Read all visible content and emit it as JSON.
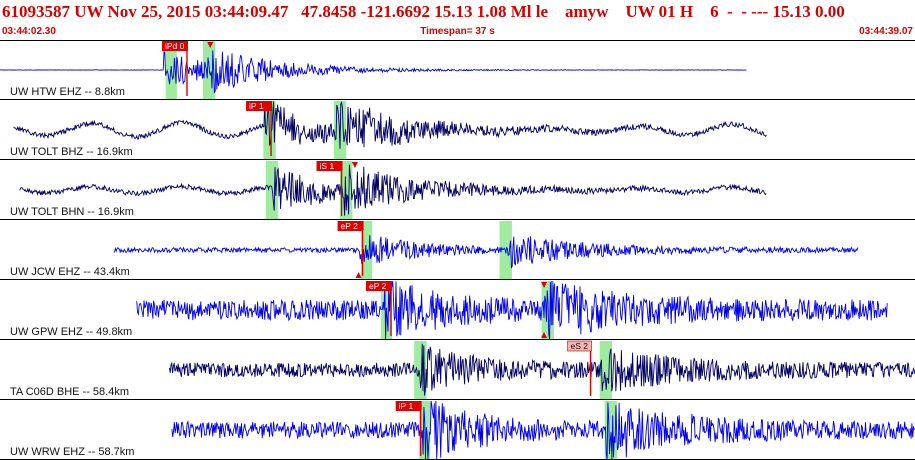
{
  "header": {
    "title": "61093587 UW Nov 25, 2015 03:44:09.47   47.8458 -121.6692 15.13 1.08 Ml le    amyw    UW 01 H    6  -  - --- 15.13 0.00",
    "start_time": "03:44:02.30",
    "timespan": "Timespan=  37 s",
    "end_time": "03:44:39.07"
  },
  "colors": {
    "header_text": "#d40000",
    "blue_trace": "#0000ee",
    "dark_trace": "#000066",
    "pick_box": "#e00000",
    "pick_box_emergent": "#f4b4b4",
    "window_highlight": "#8ee88e",
    "separator": "#000000"
  },
  "traces": [
    {
      "label": "UW HTW EHZ -- 8.8km",
      "color": "blue",
      "picks": [
        {
          "text": "iPd 0",
          "style": "solid"
        }
      ],
      "flags": [
        {
          "dir": "down"
        }
      ],
      "windows": [
        {
          "t": 6.7,
          "w": 0.45
        },
        {
          "t": 8.2,
          "w": 0.5
        }
      ],
      "pick_t": 6.55,
      "pick2_t": 8.5,
      "onset_t": 6.6,
      "s_t": 8.4,
      "start_t": 0.0,
      "end_t": 30.2,
      "amp": 0.32,
      "noise": 0.003,
      "bg": 0.0,
      "seed": 11
    },
    {
      "label": "UW TOLT BHZ -- 16.9km",
      "color": "dark",
      "picks": [
        {
          "text": "iP 1",
          "style": "solid"
        }
      ],
      "flags": [],
      "windows": [
        {
          "t": 10.65,
          "w": 0.5
        },
        {
          "t": 13.5,
          "w": 0.5
        }
      ],
      "pick_t": 9.95,
      "onset_t": 10.7,
      "s_t": 13.6,
      "start_t": 0.55,
      "end_t": 31.0,
      "amp": 0.4,
      "noise": 0.04,
      "bg": 0.12,
      "seed": 23
    },
    {
      "label": "UW TOLT BHN -- 16.9km",
      "color": "dark",
      "picks": [
        {
          "text": "iS 1",
          "style": "solid"
        }
      ],
      "flags": [
        {
          "dir": "down"
        }
      ],
      "windows": [
        {
          "t": 10.75,
          "w": 0.5
        },
        {
          "t": 13.75,
          "w": 0.5
        }
      ],
      "pick_t": 12.8,
      "pick2_t": 14.35,
      "onset_t": 11.0,
      "s_t": 13.8,
      "start_t": 0.8,
      "end_t": 31.0,
      "amp": 0.38,
      "noise": 0.04,
      "bg": 0.06,
      "seed": 37
    },
    {
      "label": "UW JCW EHZ -- 43.4km",
      "color": "blue",
      "picks": [
        {
          "text": "eP 2",
          "style": "solid"
        }
      ],
      "flags": [
        {
          "dir": "up"
        }
      ],
      "windows": [
        {
          "t": 14.6,
          "w": 0.45
        },
        {
          "t": 20.2,
          "w": 0.5
        }
      ],
      "pick_t": 13.65,
      "pick2_t": 14.5,
      "onset_t": 14.55,
      "s_t": 20.5,
      "start_t": 4.6,
      "end_t": 34.7,
      "amp": 0.28,
      "noise": 0.04,
      "bg": 0.0,
      "seed": 41
    },
    {
      "label": "UW GPW EHZ -- 49.8km",
      "color": "blue",
      "picks": [
        {
          "text": "eP 2",
          "style": "solid"
        }
      ],
      "flags": [
        {
          "dir": "down"
        },
        {
          "dir": "up"
        }
      ],
      "windows": [
        {
          "t": 15.4,
          "w": 0.45
        },
        {
          "t": 21.9,
          "w": 0.5
        }
      ],
      "pick_t": 14.8,
      "pick2_t": 22.0,
      "onset_t": 15.5,
      "s_t": 22.0,
      "start_t": 5.5,
      "end_t": 35.9,
      "amp": 0.42,
      "noise": 0.17,
      "bg": 0.0,
      "seed": 53
    },
    {
      "label": "TA C06D BHE -- 58.4km",
      "color": "dark",
      "picks": [
        {
          "text": "eS 2",
          "style": "emergent"
        }
      ],
      "flags": [],
      "windows": [
        {
          "t": 16.75,
          "w": 0.5
        },
        {
          "t": 24.25,
          "w": 0.5
        }
      ],
      "pick_t": 22.95,
      "onset_t": 17.0,
      "s_t": 24.3,
      "start_t": 6.85,
      "end_t": 37.0,
      "amp": 0.34,
      "noise": 0.12,
      "bg": 0.0,
      "seed": 67
    },
    {
      "label": "UW WRW EHZ -- 58.7km",
      "color": "blue",
      "picks": [
        {
          "text": "iP 1",
          "style": "solid"
        }
      ],
      "flags": [],
      "windows": [
        {
          "t": 16.95,
          "w": 0.45
        },
        {
          "t": 24.45,
          "w": 0.5
        }
      ],
      "pick_t": 16.0,
      "onset_t": 17.1,
      "s_t": 24.5,
      "start_t": 6.95,
      "end_t": 37.0,
      "amp": 0.45,
      "noise": 0.14,
      "bg": 0.0,
      "seed": 79
    }
  ]
}
